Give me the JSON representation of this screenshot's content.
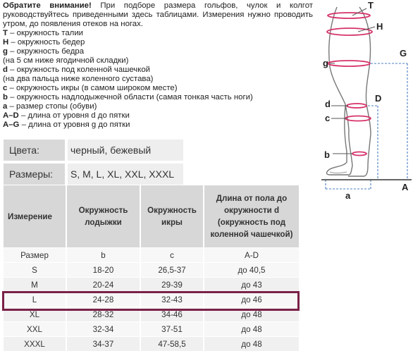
{
  "intro": {
    "warning": "Обратите внимание!",
    "text": "При подборе размера гольфов, чулок и колгот руководствуйтесь приведенными здесь таблицами. Измерения нужно проводить утром, до появления отеков на ногах.",
    "legend": [
      {
        "sym": "T",
        "desc": "– окружность талии"
      },
      {
        "sym": "H",
        "desc": "– окружность бедер"
      },
      {
        "sym": "g",
        "desc": "– окружность бедра"
      },
      {
        "sym": "",
        "desc": "(на 5 см ниже ягодичной складки)"
      },
      {
        "sym": "d",
        "desc": "– окружность под коленной чашечкой"
      },
      {
        "sym": "",
        "desc": "(на два пальца ниже коленного сустава)"
      },
      {
        "sym": "c",
        "desc": "– окружность икры (в самом широком месте)"
      },
      {
        "sym": "b",
        "desc": "– окружность надлодыжечной области (самая тонкая часть ноги)"
      },
      {
        "sym": "a",
        "desc": "– размер стопы (обуви)"
      },
      {
        "sym": "A–D",
        "desc": "– длина от уровня d до пятки"
      },
      {
        "sym": "A–G",
        "desc": "– длина от уровня g до пятки"
      }
    ]
  },
  "attrs": {
    "colors_label": "Цвета:",
    "colors_value": "черный, бежевый",
    "sizes_label": "Размеры:",
    "sizes_value": "S, M, L, XL, XXL, XXXL"
  },
  "table": {
    "headers": [
      "Измерение",
      "Окружность лодыжки",
      "Окружность икры",
      "Длина от пола до окружности d (окружность под коленной чашечкой)"
    ],
    "rows": [
      [
        "Размер",
        "b",
        "c",
        "A-D"
      ],
      [
        "S",
        "18-20",
        "26,5-37",
        "до 40,5"
      ],
      [
        "M",
        "20-24",
        "29-39",
        "до 43"
      ],
      [
        "L",
        "24-28",
        "32-43",
        "до 46"
      ],
      [
        "XL",
        "28-32",
        "34-46",
        "до 48"
      ],
      [
        "XXL",
        "32-34",
        "37-51",
        "до 48"
      ],
      [
        "XXXL",
        "34-37",
        "47-58,5",
        "до 48"
      ]
    ],
    "highlight_color": "#7b2147"
  },
  "diagram": {
    "labels": {
      "T": "T",
      "H": "H",
      "G": "G",
      "g": "g",
      "D": "D",
      "d": "d",
      "c": "c",
      "b": "b",
      "a": "a",
      "A": "A"
    },
    "accent_color": "#d6336c"
  }
}
